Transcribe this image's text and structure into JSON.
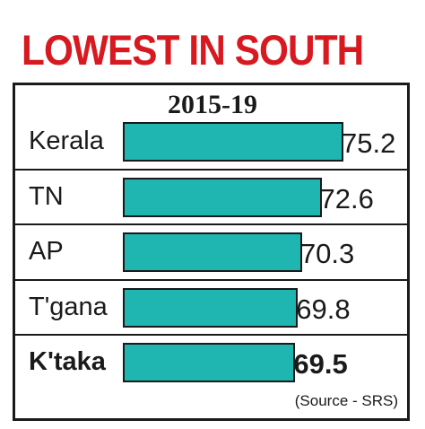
{
  "chart_data": {
    "type": "bar",
    "orientation": "horizontal",
    "title": "LOWEST IN SOUTH",
    "subtitle": "2015-19",
    "categories": [
      "Kerala",
      "TN",
      "AP",
      "T'gana",
      "K'taka"
    ],
    "values": [
      75.2,
      72.6,
      70.3,
      69.8,
      69.5
    ],
    "value_labels": [
      "75.2",
      "72.6",
      "70.3",
      "69.8",
      "69.5"
    ],
    "highlight": "K'taka",
    "source": "(Source - SRS)",
    "grid": false,
    "colors": {
      "bar": "#1fb5b1",
      "title": "#d71920",
      "border": "#1a1a1a"
    }
  }
}
